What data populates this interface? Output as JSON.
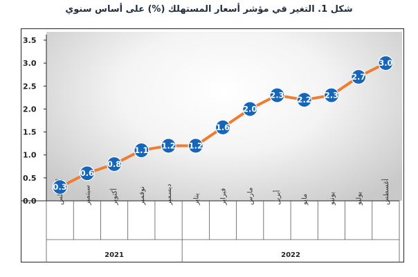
{
  "title": "شكل 1. التغير في مؤشر أسعار المستهلك (%) على أساس سنوي",
  "chart_data": {
    "type": "line",
    "title": "شكل 1. التغير في مؤشر أسعار المستهلك (%) على أساس سنوي",
    "xlabel": "",
    "ylabel": "",
    "ylim": [
      0,
      3.5
    ],
    "yticks": [
      "0.0",
      "0.5",
      "1.0",
      "1.5",
      "2.0",
      "2.5",
      "3.0",
      "3.5"
    ],
    "grid": false,
    "categories": [
      "أغسطس",
      "سبتمبر",
      "أكتوبر",
      "نوفمبر",
      "ديسمبر",
      "يناير",
      "فبراير",
      "مارس",
      "أبريل",
      "مايو",
      "يونيو",
      "يوليو",
      "أغسطس"
    ],
    "groups": [
      {
        "label": "2021",
        "count": 5
      },
      {
        "label": "2022",
        "count": 8
      }
    ],
    "series": [
      {
        "values": [
          0.3,
          0.6,
          0.8,
          1.1,
          1.2,
          1.2,
          1.6,
          2.0,
          2.3,
          2.2,
          2.3,
          2.7,
          3.0
        ],
        "labels": [
          "0.3",
          "0.6",
          "0.8",
          "1.1",
          "1.2",
          "1.2",
          "1.6",
          "2.0",
          "2.3",
          "2.2",
          "2.3",
          "2.7",
          "3.0"
        ]
      }
    ],
    "colors": {
      "line": "#ee7d31",
      "marker": "#1565b8",
      "marker_text": "#ffffff",
      "axis": "#222222"
    }
  }
}
